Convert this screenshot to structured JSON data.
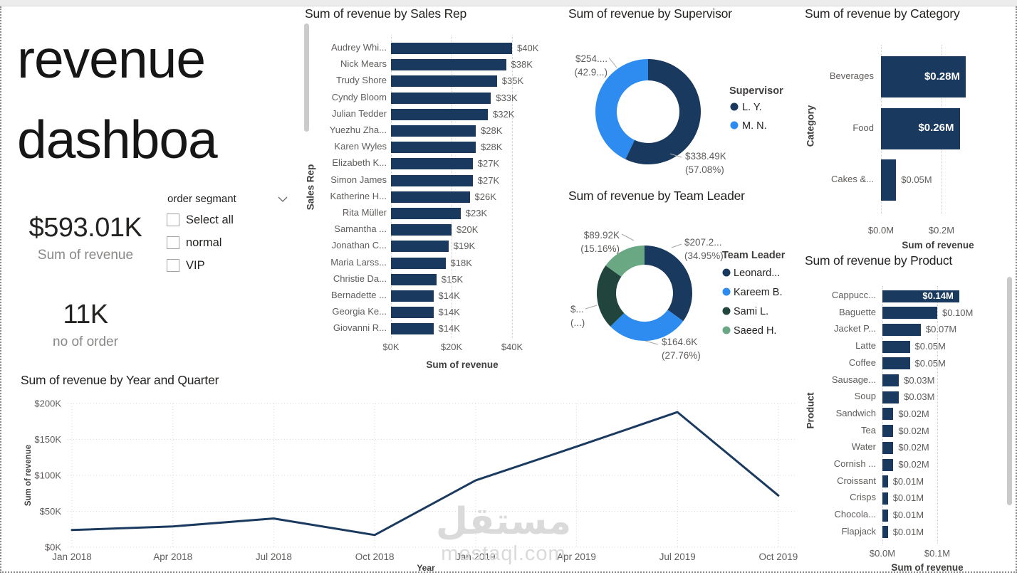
{
  "title_box": {
    "line1": "revenue",
    "line2": "dashboa"
  },
  "kpis": [
    {
      "value": "$593.01K",
      "label": "Sum of revenue"
    },
    {
      "value": "11K",
      "label": "no of order"
    }
  ],
  "slicer": {
    "title": "order segmant",
    "options": [
      {
        "label": "Select all",
        "checked": false
      },
      {
        "label": "normal",
        "checked": false
      },
      {
        "label": "VIP",
        "checked": false
      }
    ]
  },
  "watermark": {
    "arabic": "مستقل",
    "latin": "mostaql.com"
  },
  "colors": {
    "navy": "#19395E",
    "blue": "#2E8BEF",
    "dark_green": "#21443C",
    "green": "#6AA884",
    "label_gray": "#5f5d5b",
    "title_dark": "#252321",
    "grid": "#d2d0ce"
  },
  "chart_data": [
    {
      "id": "sales_rep",
      "type": "bar",
      "orientation": "horizontal",
      "title": "Sum of revenue by Sales Rep",
      "xlabel": "Sum of revenue",
      "ylabel": "Sales Rep",
      "x_ticks": [
        {
          "value": 0,
          "label": "$0K"
        },
        {
          "value": 20,
          "label": "$20K"
        },
        {
          "value": 40,
          "label": "$40K"
        }
      ],
      "xlim": [
        0,
        44
      ],
      "unit": "K USD",
      "categories": [
        "Audrey Whi...",
        "Nick Mears",
        "Trudy Shore",
        "Cyndy Bloom",
        "Julian Tedder",
        "Yuezhu Zha...",
        "Karen Wyles",
        "Elizabeth K...",
        "Simon James",
        "Katherine H...",
        "Rita Müller",
        "Samantha ...",
        "Jonathan C...",
        "Maria Larss...",
        "Christie Da...",
        "Bernadette ...",
        "Georgia Ke...",
        "Giovanni R..."
      ],
      "values": [
        40,
        38,
        35,
        33,
        32,
        28,
        28,
        27,
        27,
        26,
        23,
        20,
        19,
        18,
        15,
        14,
        14,
        14
      ],
      "value_labels": [
        "$40K",
        "$38K",
        "$35K",
        "$33K",
        "$32K",
        "$28K",
        "$28K",
        "$27K",
        "$27K",
        "$26K",
        "$23K",
        "$20K",
        "$19K",
        "$18K",
        "$15K",
        "$14K",
        "$14K",
        "$14K"
      ]
    },
    {
      "id": "supervisor",
      "type": "donut",
      "title": "Sum of revenue by Supervisor",
      "legend_title": "Supervisor",
      "slices": [
        {
          "name": "L. Y.",
          "pct": 57.08,
          "value_label": "$338.49K",
          "pct_label": "(57.08%)",
          "color_key": "navy"
        },
        {
          "name": "M. N.",
          "pct": 42.92,
          "value_label": "$254....",
          "pct_label": "(42.9...)",
          "color_key": "blue"
        }
      ]
    },
    {
      "id": "team_leader",
      "type": "donut",
      "title": "Sum of revenue by Team Leader",
      "legend_title": "Team Leader",
      "slices": [
        {
          "name": "Leonard...",
          "pct": 34.95,
          "value_label": "$207.2...",
          "pct_label": "(34.95%)",
          "color_key": "navy"
        },
        {
          "name": "Kareem B.",
          "pct": 27.76,
          "value_label": "$164.6K",
          "pct_label": "(27.76%)",
          "color_key": "blue"
        },
        {
          "name": "Sami L.",
          "pct": 22.13,
          "value_label": "$...",
          "pct_label": "(...)",
          "color_key": "dark_green"
        },
        {
          "name": "Saeed H.",
          "pct": 15.16,
          "value_label": "$89.92K",
          "pct_label": "(15.16%)",
          "color_key": "green"
        }
      ]
    },
    {
      "id": "category",
      "type": "bar",
      "orientation": "horizontal",
      "title": "Sum of revenue by Category",
      "xlabel": "Sum of revenue",
      "ylabel": "Category",
      "x_ticks": [
        {
          "value": 0,
          "label": "$0.0M"
        },
        {
          "value": 0.2,
          "label": "$0.2M"
        }
      ],
      "xlim": [
        0,
        0.3
      ],
      "unit": "M USD",
      "categories": [
        "Beverages",
        "Food",
        "Cakes &..."
      ],
      "values": [
        0.28,
        0.26,
        0.05
      ],
      "value_labels": [
        "$0.28M",
        "$0.26M",
        "$0.05M"
      ],
      "label_inside": [
        true,
        true,
        false
      ]
    },
    {
      "id": "product",
      "type": "bar",
      "orientation": "horizontal",
      "title": "Sum of revenue by Product",
      "xlabel": "Sum of revenue",
      "ylabel": "Product",
      "x_ticks": [
        {
          "value": 0,
          "label": "$0.0M"
        },
        {
          "value": 0.1,
          "label": "$0.1M"
        }
      ],
      "xlim": [
        0,
        0.15
      ],
      "unit": "M USD",
      "has_scrollbar": true,
      "categories": [
        "Cappucc...",
        "Baguette",
        "Jacket P...",
        "Latte",
        "Coffee",
        "Sausage...",
        "Soup",
        "Sandwich",
        "Tea",
        "Water",
        "Cornish ...",
        "Croissant",
        "Crisps",
        "Chocola...",
        "Flapjack"
      ],
      "values": [
        0.14,
        0.1,
        0.07,
        0.05,
        0.05,
        0.03,
        0.03,
        0.02,
        0.02,
        0.02,
        0.02,
        0.01,
        0.01,
        0.01,
        0.01
      ],
      "value_labels": [
        "$0.14M",
        "$0.10M",
        "$0.07M",
        "$0.05M",
        "$0.05M",
        "$0.03M",
        "$0.03M",
        "$0.02M",
        "$0.02M",
        "$0.02M",
        "$0.02M",
        "$0.01M",
        "$0.01M",
        "$0.01M",
        "$0.01M"
      ],
      "label_inside": [
        true,
        false,
        false,
        false,
        false,
        false,
        false,
        false,
        false,
        false,
        false,
        false,
        false,
        false,
        false
      ]
    },
    {
      "id": "timeline",
      "type": "line",
      "title": "Sum of revenue by Year and Quarter",
      "xlabel": "Year",
      "ylabel": "Sum of revenue",
      "x": [
        "Jan 2018",
        "Apr 2018",
        "Jul 2018",
        "Oct 2018",
        "Jan 2019",
        "Apr 2019",
        "Jul 2019",
        "Oct 2019"
      ],
      "values_k": [
        24,
        29,
        40,
        17,
        93,
        140,
        188,
        72
      ],
      "y_ticks": [
        {
          "value": 0,
          "label": "$0K"
        },
        {
          "value": 50,
          "label": "$50K"
        },
        {
          "value": 100,
          "label": "$100K"
        },
        {
          "value": 150,
          "label": "$150K"
        },
        {
          "value": 200,
          "label": "$200K"
        }
      ],
      "ylim": [
        0,
        200
      ],
      "grid": true,
      "legend": "none"
    }
  ]
}
